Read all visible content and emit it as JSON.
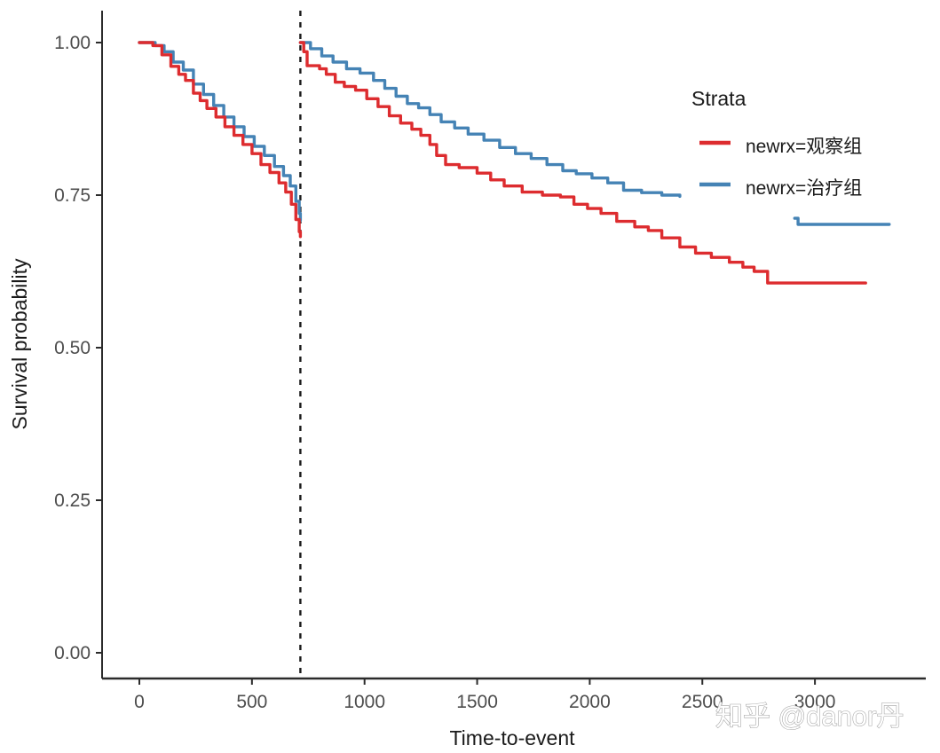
{
  "watermark": "知乎 @danor丹",
  "colors": {
    "red": "#dd2c2f",
    "blue": "#4583b5",
    "axis": "#2b2b2b",
    "tick_label": "#4d4d4d",
    "text": "#1a1a1a",
    "dashed_line": "#1a1a1a",
    "background": "#ffffff"
  },
  "chart_data": {
    "type": "line",
    "subtype": "kaplan-meier-step-curves",
    "title": "",
    "xlabel": "Time-to-event",
    "ylabel": "Survival probability",
    "xlim": [
      0,
      3500
    ],
    "ylim": [
      0.0,
      1.0
    ],
    "xticks": [
      0,
      500,
      1000,
      1500,
      2000,
      2500,
      3000
    ],
    "yticks": [
      0.0,
      0.25,
      0.5,
      0.75,
      1.0
    ],
    "grid": false,
    "vline": {
      "x": 715,
      "style": "dashed"
    },
    "legend": {
      "title": "Strata",
      "position": "right-top-inside",
      "entries": [
        {
          "label": "newrx=观察组",
          "color_key": "red"
        },
        {
          "label": "newrx=治疗组",
          "color_key": "blue"
        }
      ]
    },
    "series": [
      {
        "name": "newrx=治疗组",
        "color_key": "blue",
        "segments": [
          [
            [
              0,
              1.0
            ],
            [
              70,
              0.995
            ],
            [
              110,
              0.985
            ],
            [
              150,
              0.968
            ],
            [
              195,
              0.955
            ],
            [
              240,
              0.932
            ],
            [
              285,
              0.915
            ],
            [
              330,
              0.897
            ],
            [
              375,
              0.878
            ],
            [
              420,
              0.862
            ],
            [
              465,
              0.846
            ],
            [
              510,
              0.83
            ],
            [
              555,
              0.815
            ],
            [
              600,
              0.797
            ],
            [
              640,
              0.782
            ],
            [
              670,
              0.765
            ],
            [
              695,
              0.74
            ],
            [
              710,
              0.72
            ],
            [
              715,
              0.709
            ]
          ],
          [
            [
              715,
              1.0
            ],
            [
              760,
              0.99
            ],
            [
              810,
              0.978
            ],
            [
              860,
              0.968
            ],
            [
              920,
              0.957
            ],
            [
              980,
              0.95
            ],
            [
              1040,
              0.938
            ],
            [
              1090,
              0.925
            ],
            [
              1140,
              0.912
            ],
            [
              1190,
              0.9
            ],
            [
              1240,
              0.893
            ],
            [
              1290,
              0.882
            ],
            [
              1340,
              0.87
            ],
            [
              1400,
              0.86
            ],
            [
              1460,
              0.85
            ],
            [
              1530,
              0.84
            ],
            [
              1600,
              0.828
            ],
            [
              1670,
              0.818
            ],
            [
              1740,
              0.81
            ],
            [
              1810,
              0.8
            ],
            [
              1880,
              0.79
            ],
            [
              1940,
              0.785
            ],
            [
              2010,
              0.778
            ],
            [
              2080,
              0.77
            ],
            [
              2150,
              0.758
            ],
            [
              2230,
              0.754
            ],
            [
              2320,
              0.75
            ],
            [
              2400,
              0.748
            ]
          ],
          [
            [
              2910,
              0.712
            ],
            [
              2925,
              0.702
            ],
            [
              3330,
              0.702
            ]
          ]
        ]
      },
      {
        "name": "newrx=观察组",
        "color_key": "red",
        "segments": [
          [
            [
              0,
              1.0
            ],
            [
              60,
              0.995
            ],
            [
              100,
              0.98
            ],
            [
              140,
              0.961
            ],
            [
              175,
              0.948
            ],
            [
              205,
              0.938
            ],
            [
              240,
              0.917
            ],
            [
              270,
              0.905
            ],
            [
              300,
              0.892
            ],
            [
              340,
              0.878
            ],
            [
              380,
              0.862
            ],
            [
              420,
              0.848
            ],
            [
              460,
              0.833
            ],
            [
              500,
              0.818
            ],
            [
              540,
              0.8
            ],
            [
              580,
              0.787
            ],
            [
              620,
              0.77
            ],
            [
              650,
              0.755
            ],
            [
              675,
              0.735
            ],
            [
              695,
              0.71
            ],
            [
              710,
              0.69
            ],
            [
              715,
              0.682
            ]
          ],
          [
            [
              715,
              1.0
            ],
            [
              730,
              0.985
            ],
            [
              745,
              0.962
            ],
            [
              800,
              0.957
            ],
            [
              830,
              0.948
            ],
            [
              870,
              0.935
            ],
            [
              910,
              0.928
            ],
            [
              960,
              0.922
            ],
            [
              1010,
              0.908
            ],
            [
              1060,
              0.895
            ],
            [
              1110,
              0.88
            ],
            [
              1160,
              0.868
            ],
            [
              1210,
              0.858
            ],
            [
              1250,
              0.848
            ],
            [
              1290,
              0.833
            ],
            [
              1320,
              0.815
            ],
            [
              1360,
              0.8
            ],
            [
              1420,
              0.795
            ],
            [
              1500,
              0.786
            ],
            [
              1560,
              0.775
            ],
            [
              1620,
              0.765
            ],
            [
              1700,
              0.755
            ],
            [
              1790,
              0.75
            ],
            [
              1870,
              0.747
            ],
            [
              1930,
              0.735
            ],
            [
              1990,
              0.728
            ],
            [
              2050,
              0.72
            ],
            [
              2120,
              0.707
            ],
            [
              2200,
              0.698
            ],
            [
              2260,
              0.692
            ],
            [
              2320,
              0.68
            ],
            [
              2400,
              0.665
            ],
            [
              2470,
              0.655
            ],
            [
              2540,
              0.648
            ],
            [
              2620,
              0.64
            ],
            [
              2680,
              0.632
            ],
            [
              2730,
              0.625
            ],
            [
              2790,
              0.606
            ],
            [
              3225,
              0.606
            ]
          ]
        ]
      }
    ]
  }
}
